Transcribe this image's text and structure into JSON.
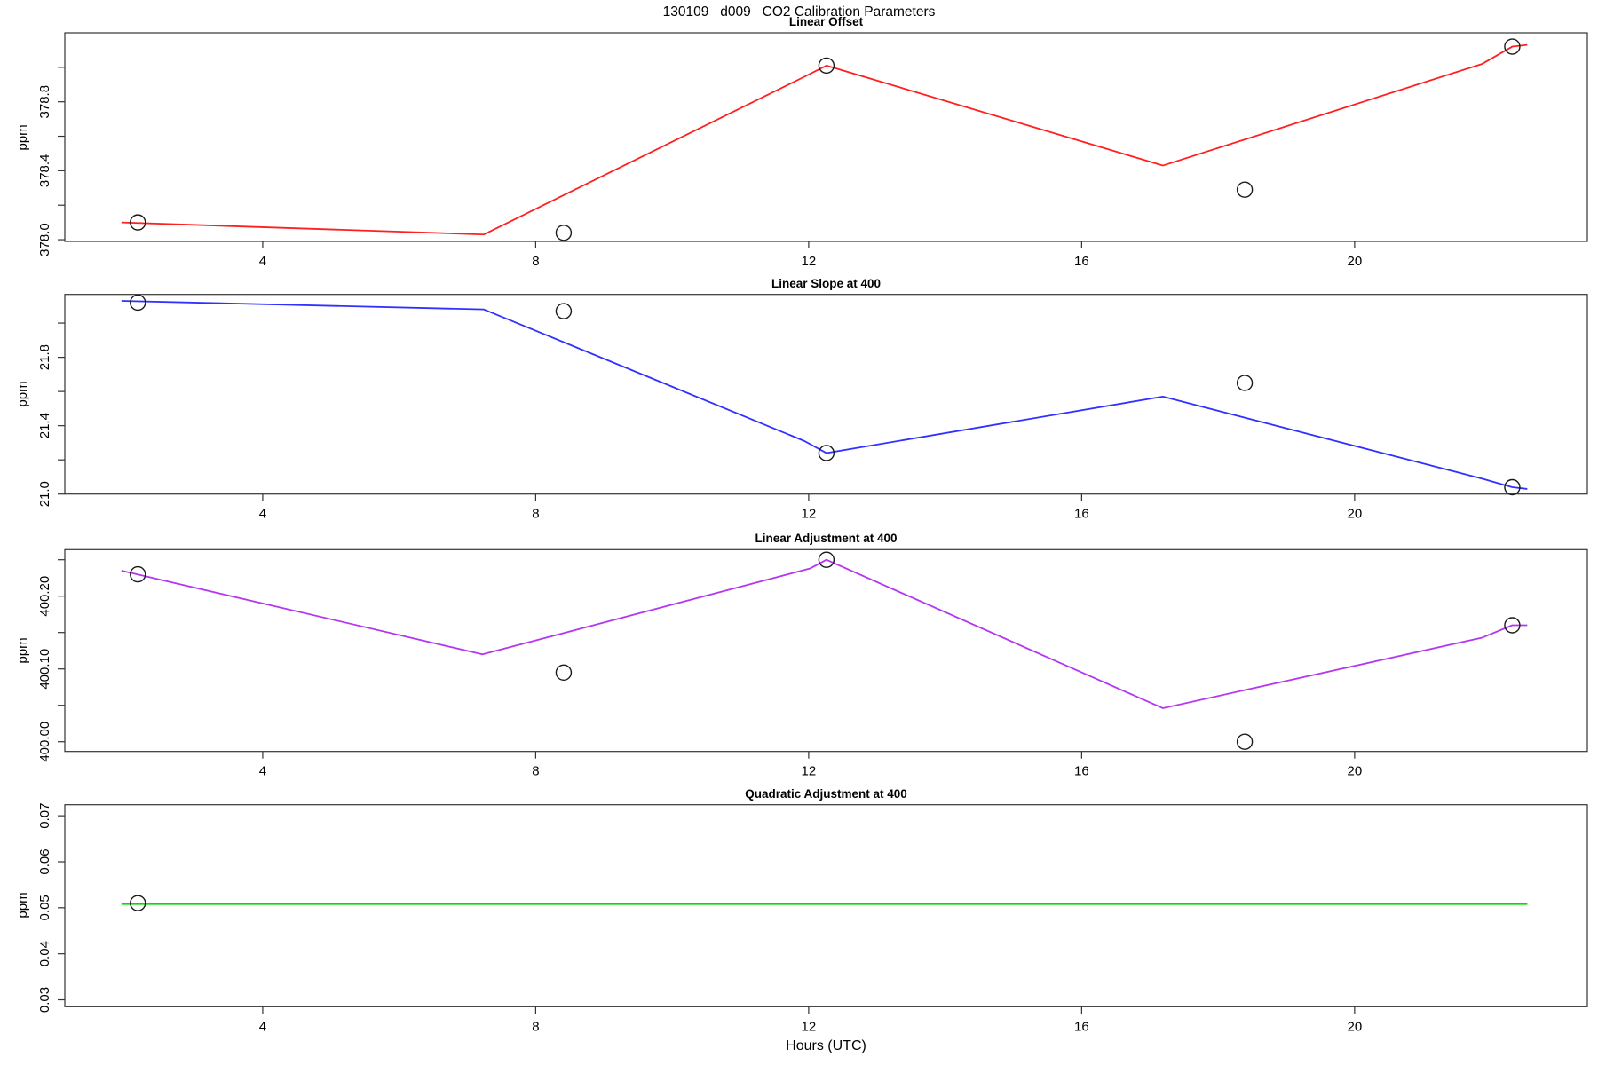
{
  "header": {
    "title": "130109   d009   CO2 Calibration Parameters"
  },
  "xaxis_label": "Hours (UTC)",
  "chart_data": [
    {
      "type": "line",
      "title": "Linear Offset",
      "ylabel": "ppm",
      "line_color": "#ff1f1f",
      "point_color": "#1a1a1a",
      "xlim": [
        1.1,
        23.41
      ],
      "ylim": [
        377.99,
        379.2
      ],
      "xticks": [
        4,
        8,
        12,
        16,
        20
      ],
      "yticks": [
        378.0,
        378.2,
        378.4,
        378.6,
        378.8,
        379.0
      ],
      "ytick_labels": [
        "378.0",
        "",
        "378.4",
        "",
        "378.8",
        ""
      ],
      "line": {
        "x": [
          1.93,
          7.24,
          11.91,
          12.26,
          17.19,
          21.87,
          22.31,
          22.53
        ],
        "y": [
          378.1,
          378.03,
          378.94,
          379.01,
          378.43,
          379.02,
          379.12,
          379.13
        ]
      },
      "points": {
        "x": [
          2.17,
          8.41,
          12.26,
          18.39,
          22.31
        ],
        "y": [
          378.1,
          378.04,
          379.01,
          378.29,
          379.12
        ]
      }
    },
    {
      "type": "line",
      "title": "Linear Slope at 400",
      "ylabel": "ppm",
      "line_color": "#3030ff",
      "point_color": "#1a1a1a",
      "xlim": [
        1.1,
        23.41
      ],
      "ylim": [
        21.0,
        22.168
      ],
      "xticks": [
        4,
        8,
        12,
        16,
        20
      ],
      "yticks": [
        21.0,
        21.2,
        21.4,
        21.6,
        21.8,
        22.0
      ],
      "ytick_labels": [
        "21.0",
        "",
        "21.4",
        "",
        "21.8",
        ""
      ],
      "line": {
        "x": [
          1.93,
          7.24,
          11.94,
          12.26,
          17.19,
          21.87,
          22.31,
          22.53
        ],
        "y": [
          22.13,
          22.08,
          21.31,
          21.24,
          21.57,
          21.09,
          21.04,
          21.03
        ]
      },
      "points": {
        "x": [
          2.17,
          8.41,
          12.26,
          18.39,
          22.31
        ],
        "y": [
          22.12,
          22.07,
          21.24,
          21.65,
          21.04
        ]
      }
    },
    {
      "type": "line",
      "title": "Linear Adjustment at 400",
      "ylabel": "ppm",
      "line_color": "#b437f0",
      "point_color": "#1a1a1a",
      "xlim": [
        1.1,
        23.41
      ],
      "ylim": [
        399.9866,
        400.2639
      ],
      "xticks": [
        4,
        8,
        12,
        16,
        20
      ],
      "yticks": [
        400.0,
        400.05,
        400.1,
        400.15,
        400.2,
        400.25
      ],
      "ytick_labels": [
        "400.00",
        "",
        "400.10",
        "",
        "400.20",
        ""
      ],
      "line": {
        "x": [
          1.93,
          7.22,
          12.02,
          12.26,
          17.19,
          21.87,
          22.31,
          22.53
        ],
        "y": [
          400.235,
          400.12,
          400.238,
          400.25,
          400.046,
          400.143,
          400.16,
          400.16
        ]
      },
      "points": {
        "x": [
          2.17,
          8.41,
          12.26,
          18.39,
          22.31
        ],
        "y": [
          400.23,
          400.095,
          400.25,
          400.0,
          400.16
        ]
      }
    },
    {
      "type": "line",
      "title": "Quadratic Adjustment at 400",
      "ylabel": "ppm",
      "line_color": "#00dd00",
      "point_color": "#1a1a1a",
      "xlim": [
        1.1,
        23.41
      ],
      "ylim": [
        0.0285,
        0.0724
      ],
      "xticks": [
        4,
        8,
        12,
        16,
        20
      ],
      "yticks": [
        0.03,
        0.04,
        0.05,
        0.06,
        0.07
      ],
      "ytick_labels": [
        "0.03",
        "0.04",
        "0.05",
        "0.06",
        "0.07"
      ],
      "line": {
        "x": [
          1.93,
          22.53
        ],
        "y": [
          0.0508,
          0.0508
        ]
      },
      "points": {
        "x": [
          2.17
        ],
        "y": [
          0.051
        ]
      }
    }
  ]
}
